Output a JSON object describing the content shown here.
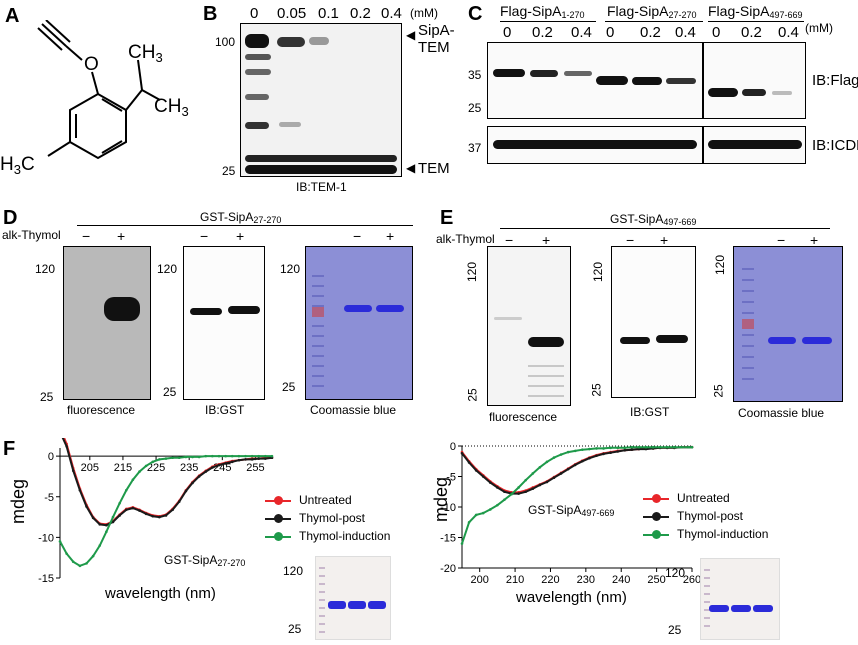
{
  "panels": {
    "A": {
      "label": "A"
    },
    "B": {
      "label": "B",
      "conc_labels": [
        "0",
        "0.05",
        "0.1",
        "0.2",
        "0.4"
      ],
      "unit": "(mM)",
      "mw_top": "100",
      "mw_bottom": "25",
      "band_top_label_1": "SipA-",
      "band_top_label_2": "TEM",
      "band_bottom_label": "TEM",
      "caption": "IB:TEM-1"
    },
    "C": {
      "label": "C",
      "group1": "Flag-SipA",
      "group1_sub": "1-270",
      "group2": "Flag-SipA",
      "group2_sub": "27-270",
      "group3": "Flag-SipA",
      "group3_sub": "497-669",
      "unit": "(mM)",
      "conc_labels": [
        "0",
        "0.2",
        "0.4",
        "0",
        "0.2",
        "0.4",
        "0",
        "0.2",
        "0.4"
      ],
      "mw_35": "35",
      "mw_25": "25",
      "mw_37": "37",
      "ib_flag": "IB:Flag",
      "ib_icdh": "IB:ICDH"
    },
    "D": {
      "label": "D",
      "construct": "GST-SipA",
      "construct_sub": "27-270",
      "alk_label": "alk-Thymol",
      "signs": [
        "−",
        "+",
        "−",
        "+",
        "−",
        "+"
      ],
      "mw_120": "120",
      "mw_25": "25",
      "cap_fluor": "fluorescence",
      "cap_gst": "IB:GST",
      "cap_coom": "Coomassie blue"
    },
    "E": {
      "label": "E",
      "construct": "GST-SipA",
      "construct_sub": "497-669",
      "alk_label": "alk-Thymol",
      "signs": [
        "−",
        "+",
        "−",
        "+",
        "−",
        "+"
      ],
      "mw_120": "120",
      "mw_25": "25",
      "cap_fluor": "fluorescence",
      "cap_gst": "IB:GST",
      "cap_coom": "Coomassie blue"
    },
    "F": {
      "label": "F",
      "ylabel": "mdeg",
      "xlabel": "wavelength (nm)",
      "legend": [
        "Untreated",
        "Thymol-post",
        "Thymol-induction"
      ],
      "construct_left": "GST-SipA",
      "construct_left_sub": "27-270",
      "construct_right": "GST-SipA",
      "construct_right_sub": "497-669",
      "gel_mw_120": "120",
      "gel_mw_25": "25"
    }
  },
  "colors": {
    "untreated": "#e8262a",
    "thymol_post": "#1a1a1a",
    "thymol_induction": "#1e9a4a",
    "coomassie_bg": "#8c8fd6",
    "coomassie_band": "#2b2bd9"
  },
  "chart_data": [
    {
      "type": "line",
      "xlabel": "wavelength (nm)",
      "ylabel": "mdeg",
      "xlim": [
        196,
        260
      ],
      "ylim": [
        -15,
        1
      ],
      "xticks": [
        205,
        215,
        225,
        235,
        245,
        255
      ],
      "yticks": [
        0,
        -5,
        -10,
        -15
      ],
      "legend_position": "center-right",
      "series": [
        {
          "name": "Untreated",
          "x": [
            196,
            198,
            200,
            202,
            204,
            206,
            208,
            210,
            212,
            214,
            216,
            218,
            220,
            222,
            224,
            226,
            228,
            230,
            232,
            234,
            236,
            238,
            240,
            242,
            244,
            246,
            248,
            250,
            252,
            254,
            256,
            258,
            260
          ],
          "y": [
            3.5,
            1.5,
            -1.5,
            -4,
            -6,
            -7.5,
            -8.3,
            -8.4,
            -8,
            -7.2,
            -6.5,
            -6.3,
            -6.6,
            -7,
            -7.3,
            -7.4,
            -7.2,
            -6.5,
            -5.5,
            -4.2,
            -3.2,
            -2.4,
            -1.8,
            -1.3,
            -1,
            -0.8,
            -0.6,
            -0.5,
            -0.4,
            -0.3,
            -0.3,
            -0.2,
            -0.2
          ]
        },
        {
          "name": "Thymol-post",
          "x": [
            196,
            198,
            200,
            202,
            204,
            206,
            208,
            210,
            212,
            214,
            216,
            218,
            220,
            222,
            224,
            226,
            228,
            230,
            232,
            234,
            236,
            238,
            240,
            242,
            244,
            246,
            248,
            250,
            252,
            254,
            256,
            258,
            260
          ],
          "y": [
            3,
            1.2,
            -1.8,
            -4.2,
            -6.2,
            -7.6,
            -8.4,
            -8.5,
            -8.1,
            -7.3,
            -6.6,
            -6.4,
            -6.7,
            -7.1,
            -7.4,
            -7.5,
            -7.3,
            -6.6,
            -5.6,
            -4.3,
            -3.3,
            -2.5,
            -1.9,
            -1.4,
            -1.1,
            -0.9,
            -0.7,
            -0.5,
            -0.4,
            -0.4,
            -0.3,
            -0.3,
            -0.2
          ]
        },
        {
          "name": "Thymol-induction",
          "x": [
            196,
            198,
            200,
            202,
            204,
            206,
            208,
            210,
            212,
            214,
            216,
            218,
            220,
            222,
            224,
            226,
            228,
            230,
            232,
            234,
            236,
            238,
            240,
            242,
            244,
            246,
            248,
            250,
            252,
            254,
            256,
            258,
            260
          ],
          "y": [
            -10.5,
            -12,
            -13,
            -13.5,
            -13.2,
            -12.3,
            -11,
            -9.3,
            -7.5,
            -5.8,
            -4.2,
            -2.9,
            -1.9,
            -1.2,
            -0.7,
            -0.4,
            -0.3,
            -0.2,
            -0.2,
            -0.1,
            -0.1,
            -0.1,
            0,
            0,
            0,
            0,
            0,
            0,
            0,
            0,
            0,
            0,
            0
          ]
        }
      ]
    },
    {
      "type": "line",
      "xlabel": "wavelength (nm)",
      "ylabel": "mdeg",
      "xlim": [
        195,
        260
      ],
      "ylim": [
        -20,
        0
      ],
      "xticks": [
        200,
        210,
        220,
        230,
        240,
        250,
        260
      ],
      "yticks": [
        0,
        -5,
        -10,
        -15,
        -20
      ],
      "legend_position": "center-right",
      "series": [
        {
          "name": "Untreated",
          "x": [
            195,
            197,
            199,
            201,
            203,
            205,
            207,
            209,
            211,
            213,
            215,
            217,
            219,
            221,
            223,
            225,
            227,
            229,
            231,
            233,
            235,
            237,
            239,
            241,
            243,
            245,
            247,
            249,
            251,
            253,
            255,
            257,
            259,
            260
          ],
          "y": [
            -1,
            -2.5,
            -3.8,
            -4.8,
            -5.8,
            -6.6,
            -7.3,
            -7.6,
            -7.6,
            -7.3,
            -6.8,
            -6.3,
            -5.8,
            -5.1,
            -4.4,
            -3.7,
            -3,
            -2.4,
            -1.9,
            -1.5,
            -1.2,
            -1,
            -0.8,
            -0.7,
            -0.6,
            -0.5,
            -0.4,
            -0.4,
            -0.3,
            -0.3,
            -0.3,
            -0.2,
            -0.2,
            -0.2
          ]
        },
        {
          "name": "Thymol-post",
          "x": [
            195,
            197,
            199,
            201,
            203,
            205,
            207,
            209,
            211,
            213,
            215,
            217,
            219,
            221,
            223,
            225,
            227,
            229,
            231,
            233,
            235,
            237,
            239,
            241,
            243,
            245,
            247,
            249,
            251,
            253,
            255,
            257,
            259,
            260
          ],
          "y": [
            -1.2,
            -2.7,
            -4,
            -5,
            -6,
            -6.8,
            -7.5,
            -7.8,
            -7.8,
            -7.5,
            -7,
            -6.4,
            -5.9,
            -5.2,
            -4.5,
            -3.8,
            -3.1,
            -2.5,
            -2,
            -1.6,
            -1.3,
            -1.1,
            -0.9,
            -0.7,
            -0.6,
            -0.5,
            -0.5,
            -0.4,
            -0.3,
            -0.3,
            -0.3,
            -0.2,
            -0.2,
            -0.2
          ]
        },
        {
          "name": "Thymol-induction",
          "x": [
            195,
            197,
            199,
            201,
            203,
            205,
            207,
            209,
            211,
            213,
            215,
            217,
            219,
            221,
            223,
            225,
            227,
            229,
            231,
            233,
            235,
            237,
            239,
            241,
            243,
            245,
            247,
            249,
            251,
            253,
            255,
            257,
            259,
            260
          ],
          "y": [
            -16,
            -12.5,
            -11.3,
            -11,
            -10.4,
            -9.7,
            -8.8,
            -7.9,
            -6.8,
            -5.6,
            -4.5,
            -3.5,
            -2.6,
            -1.9,
            -1.4,
            -1,
            -0.8,
            -0.6,
            -0.5,
            -0.4,
            -0.4,
            -0.3,
            -0.3,
            -0.3,
            -0.2,
            -0.2,
            -0.2,
            -0.2,
            -0.2,
            -0.2,
            -0.2,
            -0.2,
            -0.2,
            -0.2
          ]
        }
      ]
    }
  ]
}
